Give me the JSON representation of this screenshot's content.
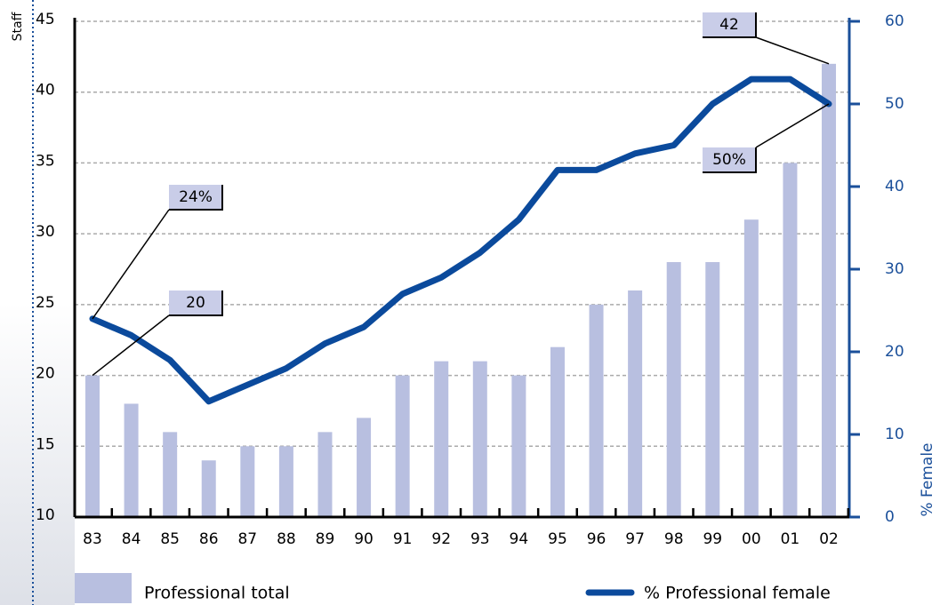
{
  "chart_data": {
    "type": "bar",
    "categories": [
      "83",
      "84",
      "85",
      "86",
      "87",
      "88",
      "89",
      "90",
      "91",
      "92",
      "93",
      "94",
      "95",
      "96",
      "97",
      "98",
      "99",
      "00",
      "01",
      "02"
    ],
    "series": [
      {
        "name": "Professional total",
        "type": "bar",
        "color": "#b8bfe0",
        "values": [
          20,
          18,
          16,
          14,
          15,
          15,
          16,
          17,
          20,
          21,
          21,
          20,
          22,
          25,
          26,
          28,
          28,
          31,
          35,
          42
        ]
      },
      {
        "name": "% Professional female",
        "type": "line",
        "axis": "y2",
        "color": "#0b4a9c",
        "values": [
          24,
          22,
          19,
          14,
          16,
          18,
          21,
          23,
          27,
          29,
          32,
          36,
          42,
          42,
          44,
          45,
          50,
          53,
          53,
          50
        ],
        "value_labels": [
          "24%",
          null,
          null,
          null,
          null,
          null,
          null,
          null,
          null,
          null,
          null,
          null,
          null,
          null,
          null,
          null,
          null,
          null,
          null,
          "50%"
        ]
      }
    ],
    "y_label": "Staff",
    "y2_label": "% Female",
    "ylim": [
      10,
      45
    ],
    "yticks": [
      10,
      15,
      20,
      25,
      30,
      35,
      40,
      45
    ],
    "y2lim": [
      0,
      60
    ],
    "y2ticks": [
      0,
      10,
      20,
      30,
      40,
      50,
      60
    ],
    "grid": true
  }
}
